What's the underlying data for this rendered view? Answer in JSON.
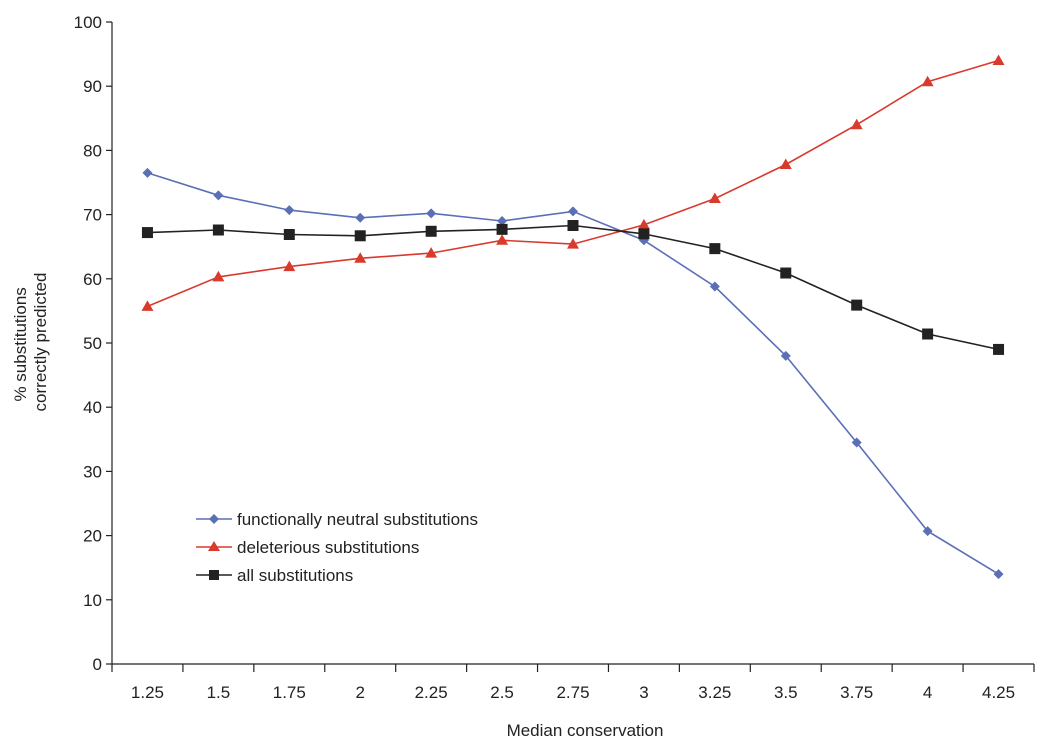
{
  "chart_data": {
    "type": "line",
    "title": "",
    "xlabel": "Median conservation",
    "ylabel_lines": [
      "% substitutions",
      "correctly predicted"
    ],
    "x": [
      1.25,
      1.5,
      1.75,
      2,
      2.25,
      2.5,
      2.75,
      3,
      3.25,
      3.5,
      3.75,
      4,
      4.25
    ],
    "x_tick_labels": [
      "1.25",
      "1.5",
      "1.75",
      "2",
      "2.25",
      "2.5",
      "2.75",
      "3",
      "3.25",
      "3.5",
      "3.75",
      "4",
      "4.25"
    ],
    "ylim": [
      0,
      100
    ],
    "y_ticks": [
      0,
      10,
      20,
      30,
      40,
      50,
      60,
      70,
      80,
      90,
      100
    ],
    "grid": false,
    "legend_position": "bottom-left",
    "series": [
      {
        "name": "functionally neutral substitutions",
        "color": "#5b6fb5",
        "marker": "diamond",
        "values": [
          76.5,
          73.0,
          70.7,
          69.5,
          70.2,
          69.0,
          70.5,
          66.0,
          58.8,
          48.0,
          34.5,
          20.7,
          14.0
        ]
      },
      {
        "name": "deleterious substitutions",
        "color": "#d93a2e",
        "marker": "triangle",
        "values": [
          55.7,
          60.3,
          61.9,
          63.2,
          64.0,
          66.0,
          65.4,
          68.4,
          72.5,
          77.8,
          84.0,
          90.7,
          94.0
        ]
      },
      {
        "name": "all substitutions",
        "color": "#222222",
        "marker": "square",
        "values": [
          67.2,
          67.6,
          66.9,
          66.7,
          67.4,
          67.7,
          68.3,
          67.0,
          64.7,
          60.9,
          55.9,
          51.4,
          49.0
        ]
      }
    ]
  }
}
